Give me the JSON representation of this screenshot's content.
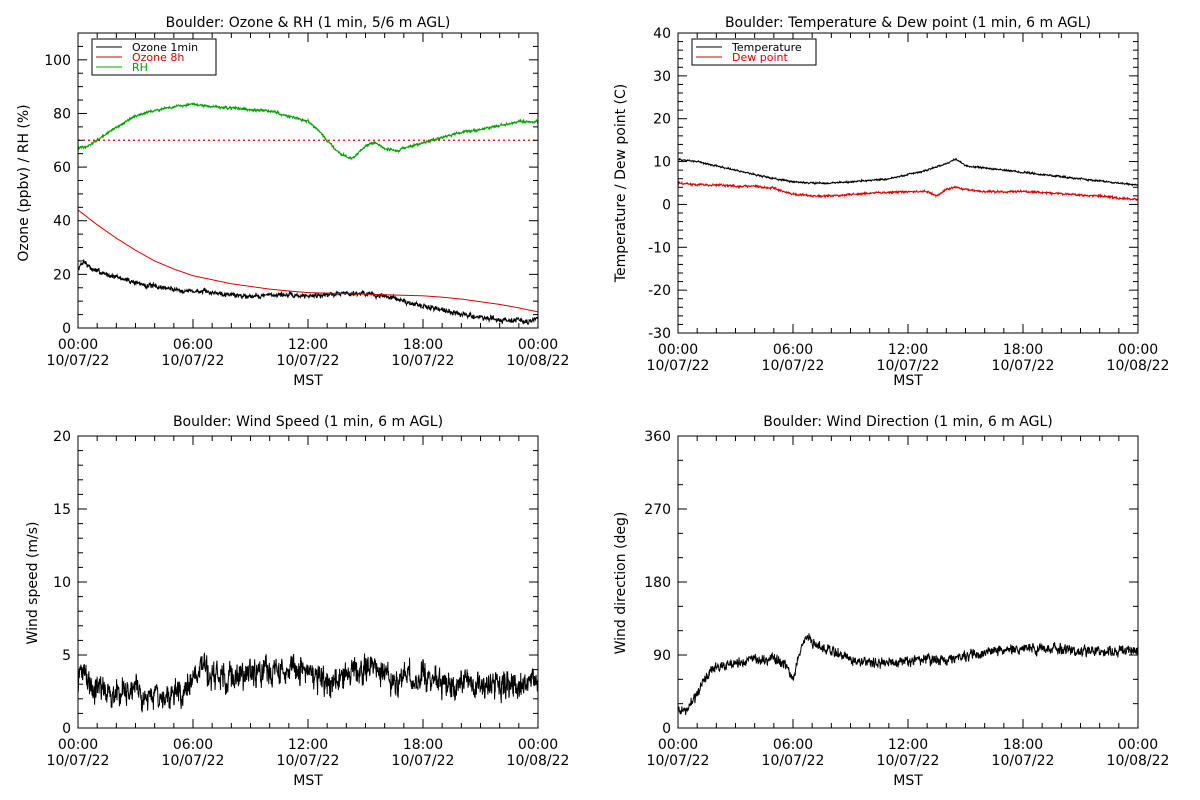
{
  "figure": {
    "background": "#ffffff"
  },
  "chart_data": [
    {
      "id": "ozone_rh",
      "type": "line",
      "title": "Boulder: Ozone & RH (1 min, 5/6 m AGL)",
      "xlabel": "MST",
      "ylabel": "Ozone (ppbv) / RH (%)",
      "xlim": [
        0,
        24
      ],
      "ylim": [
        0,
        110
      ],
      "yticks": [
        0,
        20,
        40,
        60,
        80,
        100
      ],
      "yminor": 5,
      "xticks": [
        0,
        6,
        12,
        18,
        24
      ],
      "xminor": 1,
      "xtick_labels": [
        [
          "00:00",
          "10/07/22"
        ],
        [
          "06:00",
          "10/07/22"
        ],
        [
          "12:00",
          "10/07/22"
        ],
        [
          "18:00",
          "10/07/22"
        ],
        [
          "00:00",
          "10/08/22"
        ]
      ],
      "legend": {
        "position": "top-left",
        "entries": [
          {
            "name": "Ozone 1min",
            "color": "#000000"
          },
          {
            "name": "Ozone 8h",
            "color": "#dd0000"
          },
          {
            "name": "RH",
            "color": "#00a000"
          }
        ]
      },
      "series": [
        {
          "name": "Ozone 1min",
          "color": "#000000",
          "noise": 1.2,
          "points": [
            [
              0,
              22
            ],
            [
              0.3,
              25
            ],
            [
              0.7,
              22
            ],
            [
              1.5,
              20
            ],
            [
              2.5,
              18
            ],
            [
              3.5,
              16
            ],
            [
              4.5,
              15
            ],
            [
              5.5,
              14
            ],
            [
              6.5,
              13.5
            ],
            [
              7.5,
              13
            ],
            [
              8.5,
              12
            ],
            [
              9.5,
              12
            ],
            [
              10.5,
              12.5
            ],
            [
              11.5,
              12
            ],
            [
              12,
              12
            ],
            [
              13,
              12.5
            ],
            [
              14,
              13
            ],
            [
              15,
              13
            ],
            [
              15.5,
              12
            ],
            [
              16,
              12
            ],
            [
              16.5,
              11
            ],
            [
              17,
              10
            ],
            [
              18,
              8
            ],
            [
              19,
              7
            ],
            [
              20,
              5
            ],
            [
              21,
              4
            ],
            [
              22,
              3
            ],
            [
              23,
              3
            ],
            [
              23.5,
              2
            ],
            [
              24,
              4
            ]
          ]
        },
        {
          "name": "Ozone 8h",
          "color": "#dd0000",
          "noise": 0,
          "points": [
            [
              0,
              44
            ],
            [
              1,
              38.5
            ],
            [
              2,
              33.5
            ],
            [
              3,
              29
            ],
            [
              4,
              25
            ],
            [
              5,
              22
            ],
            [
              6,
              19.5
            ],
            [
              7,
              18
            ],
            [
              8,
              16.5
            ],
            [
              9,
              15.5
            ],
            [
              10,
              14.5
            ],
            [
              11,
              13.8
            ],
            [
              12,
              13.2
            ],
            [
              13,
              13
            ],
            [
              14,
              12.8
            ],
            [
              15,
              12.6
            ],
            [
              16,
              12.4
            ],
            [
              17,
              12.2
            ],
            [
              18,
              12
            ],
            [
              19,
              11.5
            ],
            [
              20,
              10.8
            ],
            [
              21,
              9.8
            ],
            [
              22,
              8.8
            ],
            [
              23,
              7.5
            ],
            [
              24,
              6
            ]
          ]
        },
        {
          "name": "RH",
          "color": "#00a000",
          "noise": 0.6,
          "points": [
            [
              0,
              67
            ],
            [
              0.5,
              68
            ],
            [
              1,
              70
            ],
            [
              2,
              75
            ],
            [
              3,
              79
            ],
            [
              4,
              81
            ],
            [
              5,
              82.5
            ],
            [
              6,
              83.5
            ],
            [
              7,
              82.5
            ],
            [
              8,
              82
            ],
            [
              9,
              81.5
            ],
            [
              10,
              81
            ],
            [
              11,
              79
            ],
            [
              12,
              77
            ],
            [
              12.5,
              74
            ],
            [
              13,
              70
            ],
            [
              13.5,
              66
            ],
            [
              14,
              64
            ],
            [
              14.3,
              63
            ],
            [
              14.6,
              65
            ],
            [
              15,
              68
            ],
            [
              15.5,
              69
            ],
            [
              16,
              67
            ],
            [
              16.7,
              66
            ],
            [
              17,
              67
            ],
            [
              18,
              69
            ],
            [
              19,
              71
            ],
            [
              20,
              73
            ],
            [
              21,
              74
            ],
            [
              22,
              75.5
            ],
            [
              23,
              77
            ],
            [
              24,
              77
            ]
          ]
        }
      ],
      "reference_lines": [
        {
          "y": 70,
          "color": "#dd0000",
          "style": "dotted"
        }
      ]
    },
    {
      "id": "temp_dew",
      "type": "line",
      "title": "Boulder: Temperature & Dew point (1 min, 6 m AGL)",
      "xlabel": "MST",
      "ylabel": "Temperature / Dew point (C)",
      "xlim": [
        0,
        24
      ],
      "ylim": [
        -30,
        40
      ],
      "yticks": [
        -30,
        -20,
        -10,
        0,
        10,
        20,
        30,
        40
      ],
      "yminor": 2,
      "xticks": [
        0,
        6,
        12,
        18,
        24
      ],
      "xminor": 1,
      "xtick_labels": [
        [
          "00:00",
          "10/07/22"
        ],
        [
          "06:00",
          "10/07/22"
        ],
        [
          "12:00",
          "10/07/22"
        ],
        [
          "18:00",
          "10/07/22"
        ],
        [
          "00:00",
          "10/08/22"
        ]
      ],
      "legend": {
        "position": "top-left",
        "entries": [
          {
            "name": "Temperature",
            "color": "#000000"
          },
          {
            "name": "Dew point",
            "color": "#dd0000"
          }
        ]
      },
      "series": [
        {
          "name": "Temperature",
          "color": "#000000",
          "noise": 0.25,
          "points": [
            [
              0,
              10.5
            ],
            [
              1,
              10
            ],
            [
              2,
              9
            ],
            [
              3,
              8
            ],
            [
              4,
              7
            ],
            [
              5,
              6
            ],
            [
              6,
              5.3
            ],
            [
              7,
              5
            ],
            [
              8,
              5
            ],
            [
              9,
              5.2
            ],
            [
              10,
              5.6
            ],
            [
              11,
              6
            ],
            [
              12,
              7
            ],
            [
              13,
              8
            ],
            [
              14,
              9.5
            ],
            [
              14.5,
              10.5
            ],
            [
              15,
              9
            ],
            [
              16,
              8.5
            ],
            [
              17,
              8
            ],
            [
              18,
              7.5
            ],
            [
              19,
              7
            ],
            [
              20,
              6.5
            ],
            [
              21,
              6
            ],
            [
              22,
              5.5
            ],
            [
              23,
              5
            ],
            [
              24,
              4.5
            ]
          ]
        },
        {
          "name": "Dew point",
          "color": "#dd0000",
          "noise": 0.3,
          "points": [
            [
              0,
              5
            ],
            [
              1,
              4.6
            ],
            [
              2,
              4.5
            ],
            [
              3,
              4.3
            ],
            [
              4,
              4.2
            ],
            [
              5,
              3.8
            ],
            [
              5.5,
              3
            ],
            [
              6,
              2.5
            ],
            [
              7,
              2
            ],
            [
              8,
              2
            ],
            [
              9,
              2.3
            ],
            [
              10,
              2.6
            ],
            [
              11,
              2.8
            ],
            [
              12,
              3
            ],
            [
              13,
              3
            ],
            [
              13.5,
              2
            ],
            [
              14,
              3.5
            ],
            [
              14.5,
              4
            ],
            [
              15,
              3.5
            ],
            [
              16,
              3
            ],
            [
              17,
              3
            ],
            [
              18,
              3
            ],
            [
              19,
              2.8
            ],
            [
              20,
              2.5
            ],
            [
              21,
              2.2
            ],
            [
              22,
              2
            ],
            [
              23,
              1.5
            ],
            [
              24,
              1
            ]
          ]
        }
      ]
    },
    {
      "id": "wind_speed",
      "type": "line",
      "title": "Boulder: Wind Speed (1 min, 6 m AGL)",
      "xlabel": "MST",
      "ylabel": "Wind speed (m/s)",
      "xlim": [
        0,
        24
      ],
      "ylim": [
        0,
        20
      ],
      "yticks": [
        0,
        5,
        10,
        15,
        20
      ],
      "yminor": 1,
      "xticks": [
        0,
        6,
        12,
        18,
        24
      ],
      "xminor": 1,
      "xtick_labels": [
        [
          "00:00",
          "10/07/22"
        ],
        [
          "06:00",
          "10/07/22"
        ],
        [
          "12:00",
          "10/07/22"
        ],
        [
          "18:00",
          "10/07/22"
        ],
        [
          "00:00",
          "10/08/22"
        ]
      ],
      "series": [
        {
          "name": "",
          "color": "#000000",
          "noise": 1.2,
          "points": [
            [
              0,
              3
            ],
            [
              0.2,
              4
            ],
            [
              1,
              2.5
            ],
            [
              2,
              2.5
            ],
            [
              3,
              2.3
            ],
            [
              4,
              2.2
            ],
            [
              4.5,
              2
            ],
            [
              5,
              2.2
            ],
            [
              5.5,
              2.5
            ],
            [
              6,
              3.5
            ],
            [
              6.5,
              4
            ],
            [
              7,
              3.5
            ],
            [
              8,
              3.5
            ],
            [
              9,
              3.6
            ],
            [
              10,
              3.8
            ],
            [
              11,
              4
            ],
            [
              12,
              4
            ],
            [
              12.5,
              3.5
            ],
            [
              13,
              3
            ],
            [
              13.5,
              3.2
            ],
            [
              14,
              3.5
            ],
            [
              14.5,
              3.8
            ],
            [
              15,
              4
            ],
            [
              15.5,
              4.5
            ],
            [
              16,
              3.5
            ],
            [
              16.5,
              3
            ],
            [
              17,
              3.5
            ],
            [
              18,
              3.5
            ],
            [
              19,
              3.2
            ],
            [
              20,
              3
            ],
            [
              21,
              3
            ],
            [
              22,
              3
            ],
            [
              23,
              3
            ],
            [
              24,
              3
            ]
          ]
        }
      ]
    },
    {
      "id": "wind_dir",
      "type": "line",
      "title": "Boulder: Wind Direction (1 min, 6 m AGL)",
      "xlabel": "MST",
      "ylabel": "Wind direction (deg)",
      "xlim": [
        0,
        24
      ],
      "ylim": [
        0,
        360
      ],
      "yticks": [
        0,
        90,
        180,
        270,
        360
      ],
      "yminor": 30,
      "xticks": [
        0,
        6,
        12,
        18,
        24
      ],
      "xminor": 1,
      "xtick_labels": [
        [
          "00:00",
          "10/07/22"
        ],
        [
          "06:00",
          "10/07/22"
        ],
        [
          "12:00",
          "10/07/22"
        ],
        [
          "18:00",
          "10/07/22"
        ],
        [
          "00:00",
          "10/08/22"
        ]
      ],
      "series": [
        {
          "name": "",
          "color": "#000000",
          "noise": 8,
          "points": [
            [
              0,
              20
            ],
            [
              0.5,
              25
            ],
            [
              1,
              40
            ],
            [
              1.5,
              65
            ],
            [
              2,
              75
            ],
            [
              3,
              80
            ],
            [
              4,
              85
            ],
            [
              5,
              85
            ],
            [
              5.5,
              80
            ],
            [
              6,
              60
            ],
            [
              6.3,
              90
            ],
            [
              6.7,
              115
            ],
            [
              7,
              105
            ],
            [
              8,
              95
            ],
            [
              9,
              85
            ],
            [
              10,
              80
            ],
            [
              11,
              80
            ],
            [
              12,
              82
            ],
            [
              13,
              85
            ],
            [
              14,
              85
            ],
            [
              15,
              88
            ],
            [
              16,
              92
            ],
            [
              17,
              95
            ],
            [
              18,
              97
            ],
            [
              19,
              98
            ],
            [
              20,
              97
            ],
            [
              21,
              95
            ],
            [
              22,
              95
            ],
            [
              23,
              95
            ],
            [
              24,
              95
            ]
          ]
        }
      ]
    }
  ]
}
